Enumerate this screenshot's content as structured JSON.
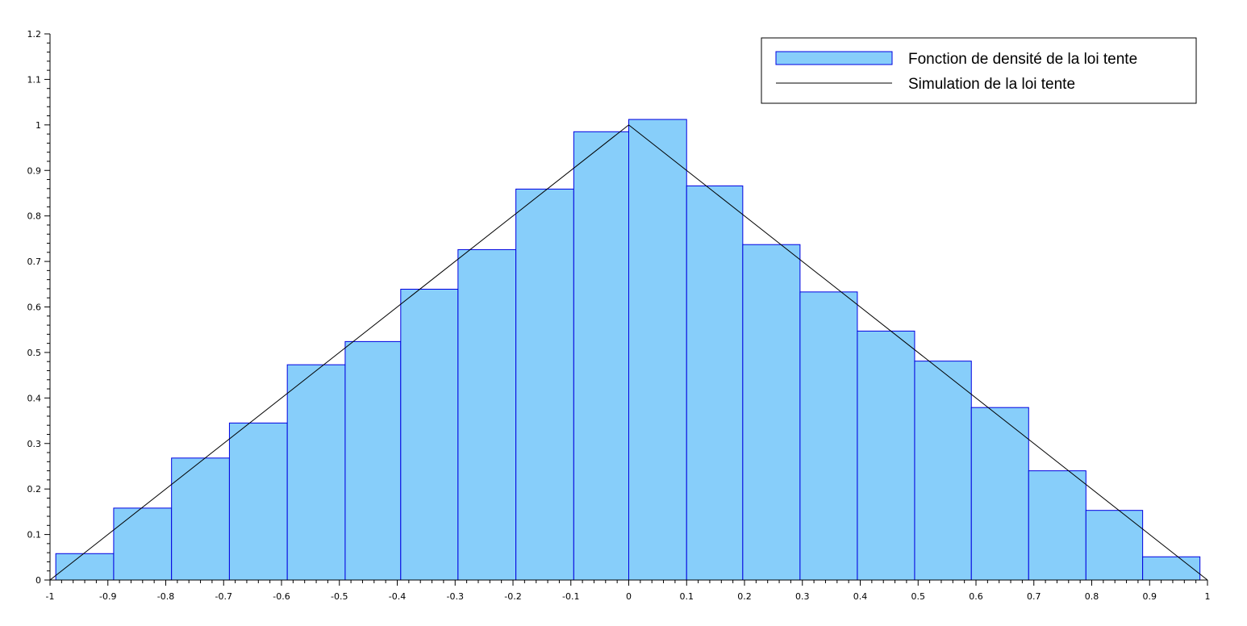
{
  "chart_data": {
    "type": "bar",
    "x_ticks": [
      "-1",
      "-0.9",
      "-0.8",
      "-0.7",
      "-0.6",
      "-0.5",
      "-0.4",
      "-0.3",
      "-0.2",
      "-0.1",
      "0",
      "0.1",
      "0.2",
      "0.3",
      "0.4",
      "0.5",
      "0.6",
      "0.7",
      "0.8",
      "0.9",
      "1"
    ],
    "y_ticks": [
      "0",
      "0.1",
      "0.2",
      "0.3",
      "0.4",
      "0.5",
      "0.6",
      "0.7",
      "0.8",
      "0.9",
      "1",
      "1.1",
      "1.2"
    ],
    "xlim": [
      -1,
      1
    ],
    "ylim": [
      0,
      1.2
    ],
    "bins": [
      {
        "x0": -0.99,
        "x1": -0.89,
        "value": 0.058
      },
      {
        "x0": -0.89,
        "x1": -0.79,
        "value": 0.158
      },
      {
        "x0": -0.79,
        "x1": -0.69,
        "value": 0.268
      },
      {
        "x0": -0.69,
        "x1": -0.59,
        "value": 0.345
      },
      {
        "x0": -0.59,
        "x1": -0.49,
        "value": 0.473
      },
      {
        "x0": -0.49,
        "x1": -0.394,
        "value": 0.524
      },
      {
        "x0": -0.394,
        "x1": -0.295,
        "value": 0.639
      },
      {
        "x0": -0.295,
        "x1": -0.195,
        "value": 0.726
      },
      {
        "x0": -0.195,
        "x1": -0.095,
        "value": 0.859
      },
      {
        "x0": -0.095,
        "x1": 0.0,
        "value": 0.985
      },
      {
        "x0": 0.0,
        "x1": 0.1,
        "value": 1.012
      },
      {
        "x0": 0.1,
        "x1": 0.197,
        "value": 0.866
      },
      {
        "x0": 0.197,
        "x1": 0.296,
        "value": 0.737
      },
      {
        "x0": 0.296,
        "x1": 0.395,
        "value": 0.633
      },
      {
        "x0": 0.395,
        "x1": 0.494,
        "value": 0.547
      },
      {
        "x0": 0.494,
        "x1": 0.592,
        "value": 0.481
      },
      {
        "x0": 0.592,
        "x1": 0.691,
        "value": 0.379
      },
      {
        "x0": 0.691,
        "x1": 0.79,
        "value": 0.24
      },
      {
        "x0": 0.79,
        "x1": 0.888,
        "value": 0.153
      },
      {
        "x0": 0.888,
        "x1": 0.987,
        "value": 0.051
      }
    ],
    "line": {
      "x": [
        -1,
        0,
        1
      ],
      "y": [
        0,
        1,
        0
      ]
    },
    "legend": {
      "placement": "top-right",
      "entries": [
        "Fonction de densité de la loi tente",
        "Simulation de la loi tente"
      ]
    },
    "grid": false,
    "colors": {
      "bar_fill": "#87cefa",
      "bar_stroke": "#0000e0",
      "line": "#000000",
      "axis": "#000000"
    }
  }
}
